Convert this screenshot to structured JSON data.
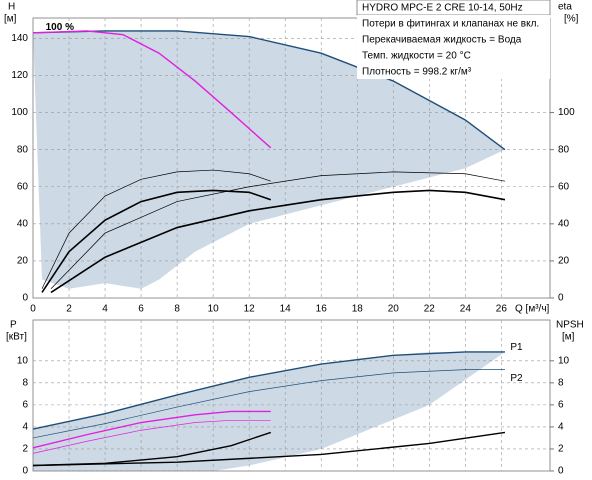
{
  "chart_data": [
    {
      "type": "line",
      "title": "HYDRO MPC-E 2 CRE 10-14, 50Hz",
      "notes": [
        "Потери в фитингах и клапанах не вкл.",
        "Перекачиваемая жидкость = Вода",
        "Темп. жидкости = 20 °C",
        "Плотность = 998.2 кг/м³"
      ],
      "y_label": "H",
      "y_unit": "[м]",
      "y2_label": "eta",
      "y2_unit": "[%]",
      "x_label": "Q [м³/ч]",
      "xlim": [
        0,
        28.7
      ],
      "xticks": [
        0,
        2,
        4,
        6,
        8,
        10,
        12,
        14,
        16,
        18,
        20,
        22,
        24,
        26
      ],
      "ylim": [
        0,
        151
      ],
      "yticks": [
        0,
        20,
        40,
        60,
        80,
        100,
        120,
        140
      ],
      "y2lim": [
        0,
        151
      ],
      "y2ticks": [
        0,
        20,
        40,
        60,
        80,
        100
      ],
      "grid": true,
      "area": {
        "color": "#cdd9e5",
        "x": [
          0,
          4,
          8,
          12,
          16,
          20,
          24,
          26.2,
          24,
          20,
          16,
          12,
          9,
          7,
          6,
          4,
          2,
          0.5,
          0
        ],
        "y": [
          143,
          144,
          144,
          141,
          132,
          117,
          96,
          80,
          70,
          60,
          50,
          40,
          25,
          10,
          5,
          8,
          5,
          10,
          143
        ]
      },
      "series": [
        {
          "color": "#1f4e79",
          "line_width": 1.4,
          "x": [
            0,
            4,
            8,
            12,
            16,
            20,
            24,
            26.2
          ],
          "values": [
            143,
            144,
            144,
            141,
            132,
            117,
            96,
            80
          ]
        },
        {
          "color": "#e020e0",
          "line_width": 1.4,
          "x": [
            0,
            3,
            5,
            7,
            9,
            11,
            13.2
          ],
          "values": [
            143,
            144,
            142,
            132,
            117,
            100,
            81
          ]
        },
        {
          "color": "#000000",
          "line_width": 0.7,
          "axis": "y2",
          "x": [
            0.5,
            2,
            4,
            6,
            8,
            10,
            12,
            13.2
          ],
          "values": [
            5,
            35,
            55,
            64,
            68,
            69,
            67,
            63
          ]
        },
        {
          "color": "#000000",
          "line_width": 1.6,
          "axis": "y2",
          "x": [
            0.5,
            2,
            4,
            6,
            8,
            10,
            12,
            13.2
          ],
          "values": [
            3,
            25,
            42,
            52,
            57,
            58,
            57,
            53
          ]
        },
        {
          "color": "#000000",
          "line_width": 0.7,
          "axis": "y2",
          "x": [
            1,
            4,
            8,
            12,
            16,
            20,
            24,
            26.2
          ],
          "values": [
            5,
            35,
            52,
            60,
            66,
            68,
            67,
            63
          ]
        },
        {
          "color": "#000000",
          "line_width": 1.6,
          "axis": "y2",
          "x": [
            1,
            4,
            8,
            12,
            16,
            20,
            22,
            24,
            26.2
          ],
          "values": [
            3,
            22,
            38,
            47,
            53,
            57,
            58,
            57,
            53
          ]
        }
      ],
      "annotations": [
        {
          "text": "100 %",
          "x": 0.7,
          "y": 146
        }
      ]
    },
    {
      "type": "line",
      "y_label": "P",
      "y_unit": "[кВт]",
      "y2_label": "NPSH",
      "y2_unit": "[м]",
      "xlim": [
        0,
        28.7
      ],
      "xticks": [
        0,
        2,
        4,
        6,
        8,
        10,
        12,
        14,
        16,
        18,
        20,
        22,
        24,
        26
      ],
      "ylim": [
        0,
        13.7
      ],
      "yticks": [
        0,
        2,
        4,
        6,
        8,
        10
      ],
      "y2lim": [
        0,
        13.7
      ],
      "y2ticks": [
        0,
        2,
        4,
        6,
        8,
        10
      ],
      "grid": true,
      "area": {
        "color": "#cdd9e5",
        "x": [
          0,
          6,
          12,
          18,
          22,
          26.2,
          22,
          16,
          12,
          10,
          0,
          0
        ],
        "y": [
          3.8,
          6,
          8.5,
          10.2,
          10.8,
          10.8,
          6,
          2,
          0.5,
          0,
          0,
          3.8
        ]
      },
      "series": [
        {
          "color": "#1f4e79",
          "line_width": 1.4,
          "x": [
            0,
            4,
            8,
            12,
            16,
            20,
            24,
            26.2
          ],
          "values": [
            3.8,
            5.2,
            6.9,
            8.5,
            9.7,
            10.5,
            10.8,
            10.8
          ]
        },
        {
          "color": "#1f4e79",
          "line_width": 0.7,
          "x": [
            0,
            4,
            8,
            12,
            16,
            20,
            24,
            26.2
          ],
          "values": [
            3,
            4.3,
            5.8,
            7.2,
            8.2,
            8.9,
            9.2,
            9.2
          ]
        },
        {
          "color": "#e020e0",
          "line_width": 1.4,
          "x": [
            0,
            3,
            6,
            9,
            11,
            13.2
          ],
          "values": [
            2.1,
            3.3,
            4.4,
            5.1,
            5.4,
            5.4
          ]
        },
        {
          "color": "#e020e0",
          "line_width": 0.7,
          "x": [
            0,
            3,
            6,
            9,
            11,
            13.2
          ],
          "values": [
            1.6,
            2.7,
            3.7,
            4.4,
            4.6,
            4.6
          ]
        },
        {
          "color": "#000000",
          "line_width": 1.4,
          "axis": "y2",
          "x": [
            0,
            4,
            8,
            11,
            13.2
          ],
          "values": [
            0.5,
            0.7,
            1.3,
            2.3,
            3.5
          ]
        },
        {
          "color": "#000000",
          "line_width": 1.4,
          "axis": "y2",
          "x": [
            0,
            8,
            16,
            22,
            26.2
          ],
          "values": [
            0.5,
            0.8,
            1.5,
            2.5,
            3.5
          ]
        }
      ],
      "annotations": [
        {
          "text": "P1",
          "x": 26.5,
          "y": 11.2
        },
        {
          "text": "P2",
          "x": 26.5,
          "y": 8.4
        }
      ]
    }
  ]
}
